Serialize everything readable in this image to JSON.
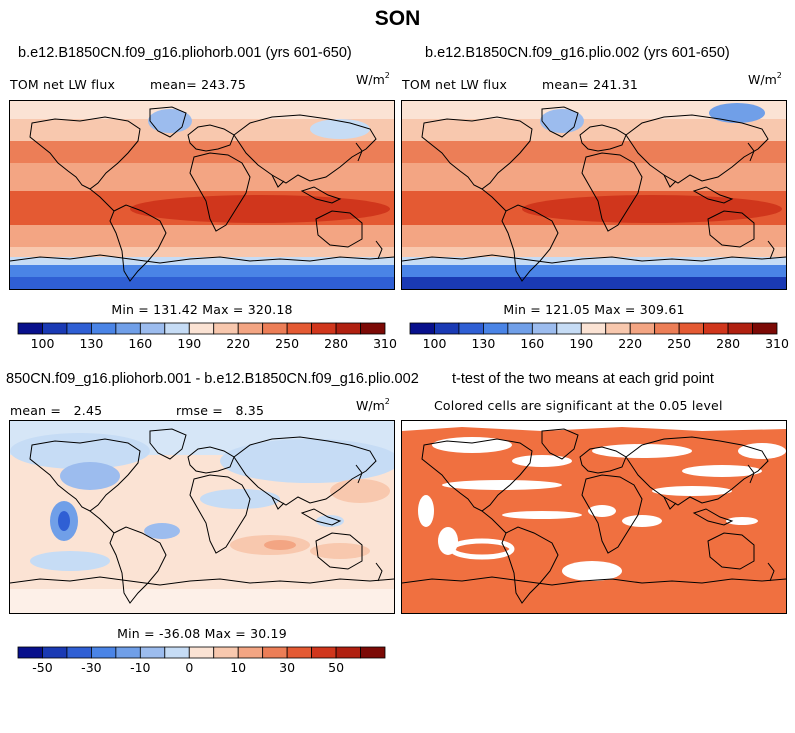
{
  "figure_title": "SON",
  "panels": {
    "top_left": {
      "title": "b.e12.B1850CN.f09_g16.pliohorb.001 (yrs 601-650)",
      "left_label": "TOM net LW flux",
      "mean_text": "mean= 243.75",
      "units": "W/m",
      "units_sup": "2",
      "minmax": "Min = 131.42 Max = 320.18"
    },
    "top_right": {
      "title": "b.e12.B1850CN.f09_g16.plio.002 (yrs 601-650)",
      "left_label": "TOM net LW flux",
      "mean_text": "mean= 241.31",
      "units": "W/m",
      "units_sup": "2",
      "minmax": "Min = 121.05 Max = 309.61"
    },
    "bottom_left": {
      "title": "850CN.f09_g16.pliohorb.001 - b.e12.B1850CN.f09_g16.plio.002",
      "mean_text": "mean =   2.45",
      "rmse_text": "rmse =   8.35",
      "units": "W/m",
      "units_sup": "2",
      "minmax": "Min = -36.08 Max = 30.19"
    },
    "bottom_right": {
      "title": "t-test of the two means at each grid point",
      "subtitle": "Colored cells are significant at the 0.05 level",
      "significant_color": "#f07040"
    }
  },
  "colorbars": {
    "flux": {
      "colors": [
        "#08108c",
        "#1a3ab4",
        "#2f5fd4",
        "#4a84e6",
        "#709fe8",
        "#9cbcee",
        "#c6dcf5",
        "#fbe3d4",
        "#f8c8ae",
        "#f3a583",
        "#ec7e57",
        "#e45a33",
        "#d0361c",
        "#b02010",
        "#7c0a06"
      ],
      "tick_labels": [
        "100",
        "130",
        "160",
        "190",
        "220",
        "250",
        "280",
        "310"
      ]
    },
    "diff": {
      "colors": [
        "#08108c",
        "#1a3ab4",
        "#2f5fd4",
        "#4a84e6",
        "#709fe8",
        "#9cbcee",
        "#c6dcf5",
        "#fbe3d4",
        "#f8c8ae",
        "#f3a583",
        "#ec7e57",
        "#e45a33",
        "#d0361c",
        "#b02010",
        "#7c0a06"
      ],
      "tick_labels": [
        "-50",
        "-30",
        "-10",
        "0",
        "10",
        "30",
        "50"
      ]
    }
  }
}
